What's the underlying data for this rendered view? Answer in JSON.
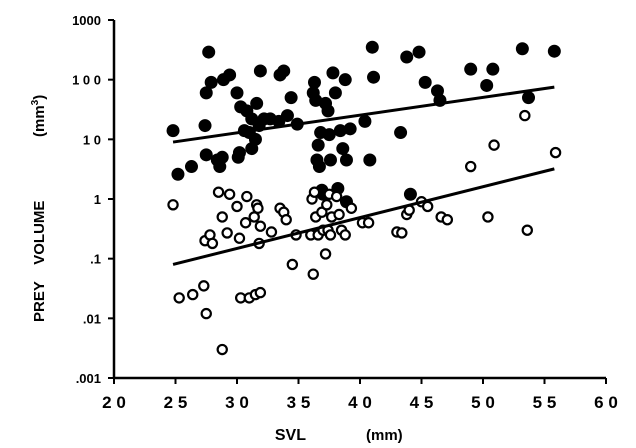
{
  "chart_data": {
    "type": "scatter",
    "xlabel": "SVL",
    "xunit": "(mm)",
    "ylabel": "PREY    VOLUME",
    "yunit_prefix": "(mm",
    "yunit_sup": "3",
    "yunit_suffix": ")",
    "xlim": [
      20,
      60
    ],
    "ylim": [
      0.001,
      1000
    ],
    "y_scale": "log",
    "grid": false,
    "x_ticks": [
      {
        "value": 20,
        "label": "2 0"
      },
      {
        "value": 25,
        "label": "2 5"
      },
      {
        "value": 30,
        "label": "3 0"
      },
      {
        "value": 35,
        "label": "3 5"
      },
      {
        "value": 40,
        "label": "4 0"
      },
      {
        "value": 45,
        "label": "4 5"
      },
      {
        "value": 50,
        "label": "5 0"
      },
      {
        "value": 55,
        "label": "5 5"
      },
      {
        "value": 60,
        "label": "6 0"
      }
    ],
    "y_ticks": [
      {
        "value": 1000,
        "label": "1000"
      },
      {
        "value": 100,
        "label": "1 0 0"
      },
      {
        "value": 10,
        "label": "1 0"
      },
      {
        "value": 1,
        "label": "1"
      },
      {
        "value": 0.1,
        "label": ".1"
      },
      {
        "value": 0.01,
        "label": ".01"
      },
      {
        "value": 0.001,
        "label": ".001"
      }
    ],
    "series": [
      {
        "marker": "filled-circle",
        "color": "#000000",
        "points": [
          [
            24.8,
            14
          ],
          [
            25.2,
            2.6
          ],
          [
            26.3,
            3.5
          ],
          [
            27.4,
            17
          ],
          [
            27.5,
            5.5
          ],
          [
            27.7,
            290
          ],
          [
            27.5,
            60
          ],
          [
            27.9,
            90
          ],
          [
            28.4,
            4.5
          ],
          [
            28.6,
            3.5
          ],
          [
            28.8,
            5
          ],
          [
            28.9,
            100
          ],
          [
            29.4,
            120
          ],
          [
            30.0,
            60
          ],
          [
            30.3,
            35
          ],
          [
            30.2,
            6
          ],
          [
            30.1,
            5
          ],
          [
            30.6,
            14
          ],
          [
            30.8,
            30
          ],
          [
            31.2,
            22
          ],
          [
            31.0,
            13
          ],
          [
            31.6,
            40
          ],
          [
            31.8,
            17
          ],
          [
            31.5,
            10
          ],
          [
            31.9,
            140
          ],
          [
            31.2,
            7
          ],
          [
            32.2,
            22
          ],
          [
            32.7,
            22
          ],
          [
            33.4,
            20
          ],
          [
            33.5,
            120
          ],
          [
            33.8,
            140
          ],
          [
            34.1,
            25
          ],
          [
            34.4,
            50
          ],
          [
            34.9,
            18
          ],
          [
            36.3,
            90
          ],
          [
            36.2,
            60
          ],
          [
            36.4,
            45
          ],
          [
            36.5,
            4.5
          ],
          [
            36.6,
            8
          ],
          [
            36.7,
            3.5
          ],
          [
            36.8,
            13
          ],
          [
            36.9,
            1.4
          ],
          [
            37.0,
            1.2
          ],
          [
            37.2,
            40
          ],
          [
            37.5,
            12
          ],
          [
            37.6,
            4.5
          ],
          [
            37.4,
            30
          ],
          [
            37.8,
            130
          ],
          [
            38.0,
            60
          ],
          [
            38.2,
            1.5
          ],
          [
            38.4,
            14
          ],
          [
            38.8,
            100
          ],
          [
            38.6,
            7
          ],
          [
            38.9,
            4.5
          ],
          [
            38.9,
            0.9
          ],
          [
            39.2,
            15
          ],
          [
            40.4,
            20
          ],
          [
            40.8,
            4.5
          ],
          [
            41.1,
            110
          ],
          [
            41.0,
            350
          ],
          [
            43.3,
            13
          ],
          [
            43.8,
            240
          ],
          [
            44.1,
            1.2
          ],
          [
            44.8,
            290
          ],
          [
            45.3,
            90
          ],
          [
            46.3,
            65
          ],
          [
            46.5,
            45
          ],
          [
            49.0,
            150
          ],
          [
            50.3,
            80
          ],
          [
            50.8,
            150
          ],
          [
            53.2,
            330
          ],
          [
            53.7,
            50
          ],
          [
            55.8,
            300
          ]
        ]
      },
      {
        "marker": "open-circle",
        "color": "#000000",
        "points": [
          [
            24.8,
            0.8
          ],
          [
            25.3,
            0.022
          ],
          [
            26.4,
            0.025
          ],
          [
            27.3,
            0.035
          ],
          [
            27.5,
            0.012
          ],
          [
            27.4,
            0.2
          ],
          [
            27.8,
            0.25
          ],
          [
            28.0,
            0.18
          ],
          [
            28.5,
            1.3
          ],
          [
            28.8,
            0.5
          ],
          [
            28.8,
            0.003
          ],
          [
            29.4,
            1.2
          ],
          [
            29.2,
            0.27
          ],
          [
            30.0,
            0.75
          ],
          [
            30.2,
            0.22
          ],
          [
            30.3,
            0.022
          ],
          [
            30.8,
            1.1
          ],
          [
            30.7,
            0.4
          ],
          [
            31.0,
            0.022
          ],
          [
            31.5,
            0.025
          ],
          [
            31.4,
            0.5
          ],
          [
            31.6,
            0.8
          ],
          [
            31.7,
            0.7
          ],
          [
            31.9,
            0.35
          ],
          [
            31.8,
            0.18
          ],
          [
            31.9,
            0.027
          ],
          [
            32.8,
            0.28
          ],
          [
            33.5,
            0.7
          ],
          [
            33.8,
            0.6
          ],
          [
            34.0,
            0.45
          ],
          [
            34.5,
            0.08
          ],
          [
            34.8,
            0.25
          ],
          [
            36.0,
            0.25
          ],
          [
            36.1,
            1.0
          ],
          [
            36.3,
            1.3
          ],
          [
            36.2,
            0.055
          ],
          [
            36.4,
            0.5
          ],
          [
            36.6,
            0.25
          ],
          [
            36.9,
            0.6
          ],
          [
            37.0,
            0.3
          ],
          [
            37.2,
            0.12
          ],
          [
            37.3,
            0.8
          ],
          [
            37.4,
            0.3
          ],
          [
            37.5,
            1.2
          ],
          [
            37.6,
            0.25
          ],
          [
            37.7,
            0.5
          ],
          [
            38.1,
            1.1
          ],
          [
            38.3,
            0.55
          ],
          [
            38.5,
            0.3
          ],
          [
            38.8,
            0.25
          ],
          [
            39.3,
            0.7
          ],
          [
            40.2,
            0.4
          ],
          [
            40.7,
            0.4
          ],
          [
            43.0,
            0.28
          ],
          [
            43.4,
            0.27
          ],
          [
            43.8,
            0.55
          ],
          [
            44.0,
            0.65
          ],
          [
            45.0,
            0.9
          ],
          [
            45.5,
            0.75
          ],
          [
            46.6,
            0.5
          ],
          [
            47.1,
            0.45
          ],
          [
            49.0,
            3.5
          ],
          [
            50.4,
            0.5
          ],
          [
            50.9,
            8
          ],
          [
            53.4,
            25
          ],
          [
            53.6,
            0.3
          ],
          [
            55.9,
            6
          ]
        ]
      }
    ],
    "fit_lines": [
      {
        "series": 0,
        "x": [
          24.8,
          55.8
        ],
        "y": [
          9,
          75
        ]
      },
      {
        "series": 1,
        "x": [
          24.8,
          55.8
        ],
        "y": [
          0.08,
          3.2
        ]
      }
    ]
  }
}
